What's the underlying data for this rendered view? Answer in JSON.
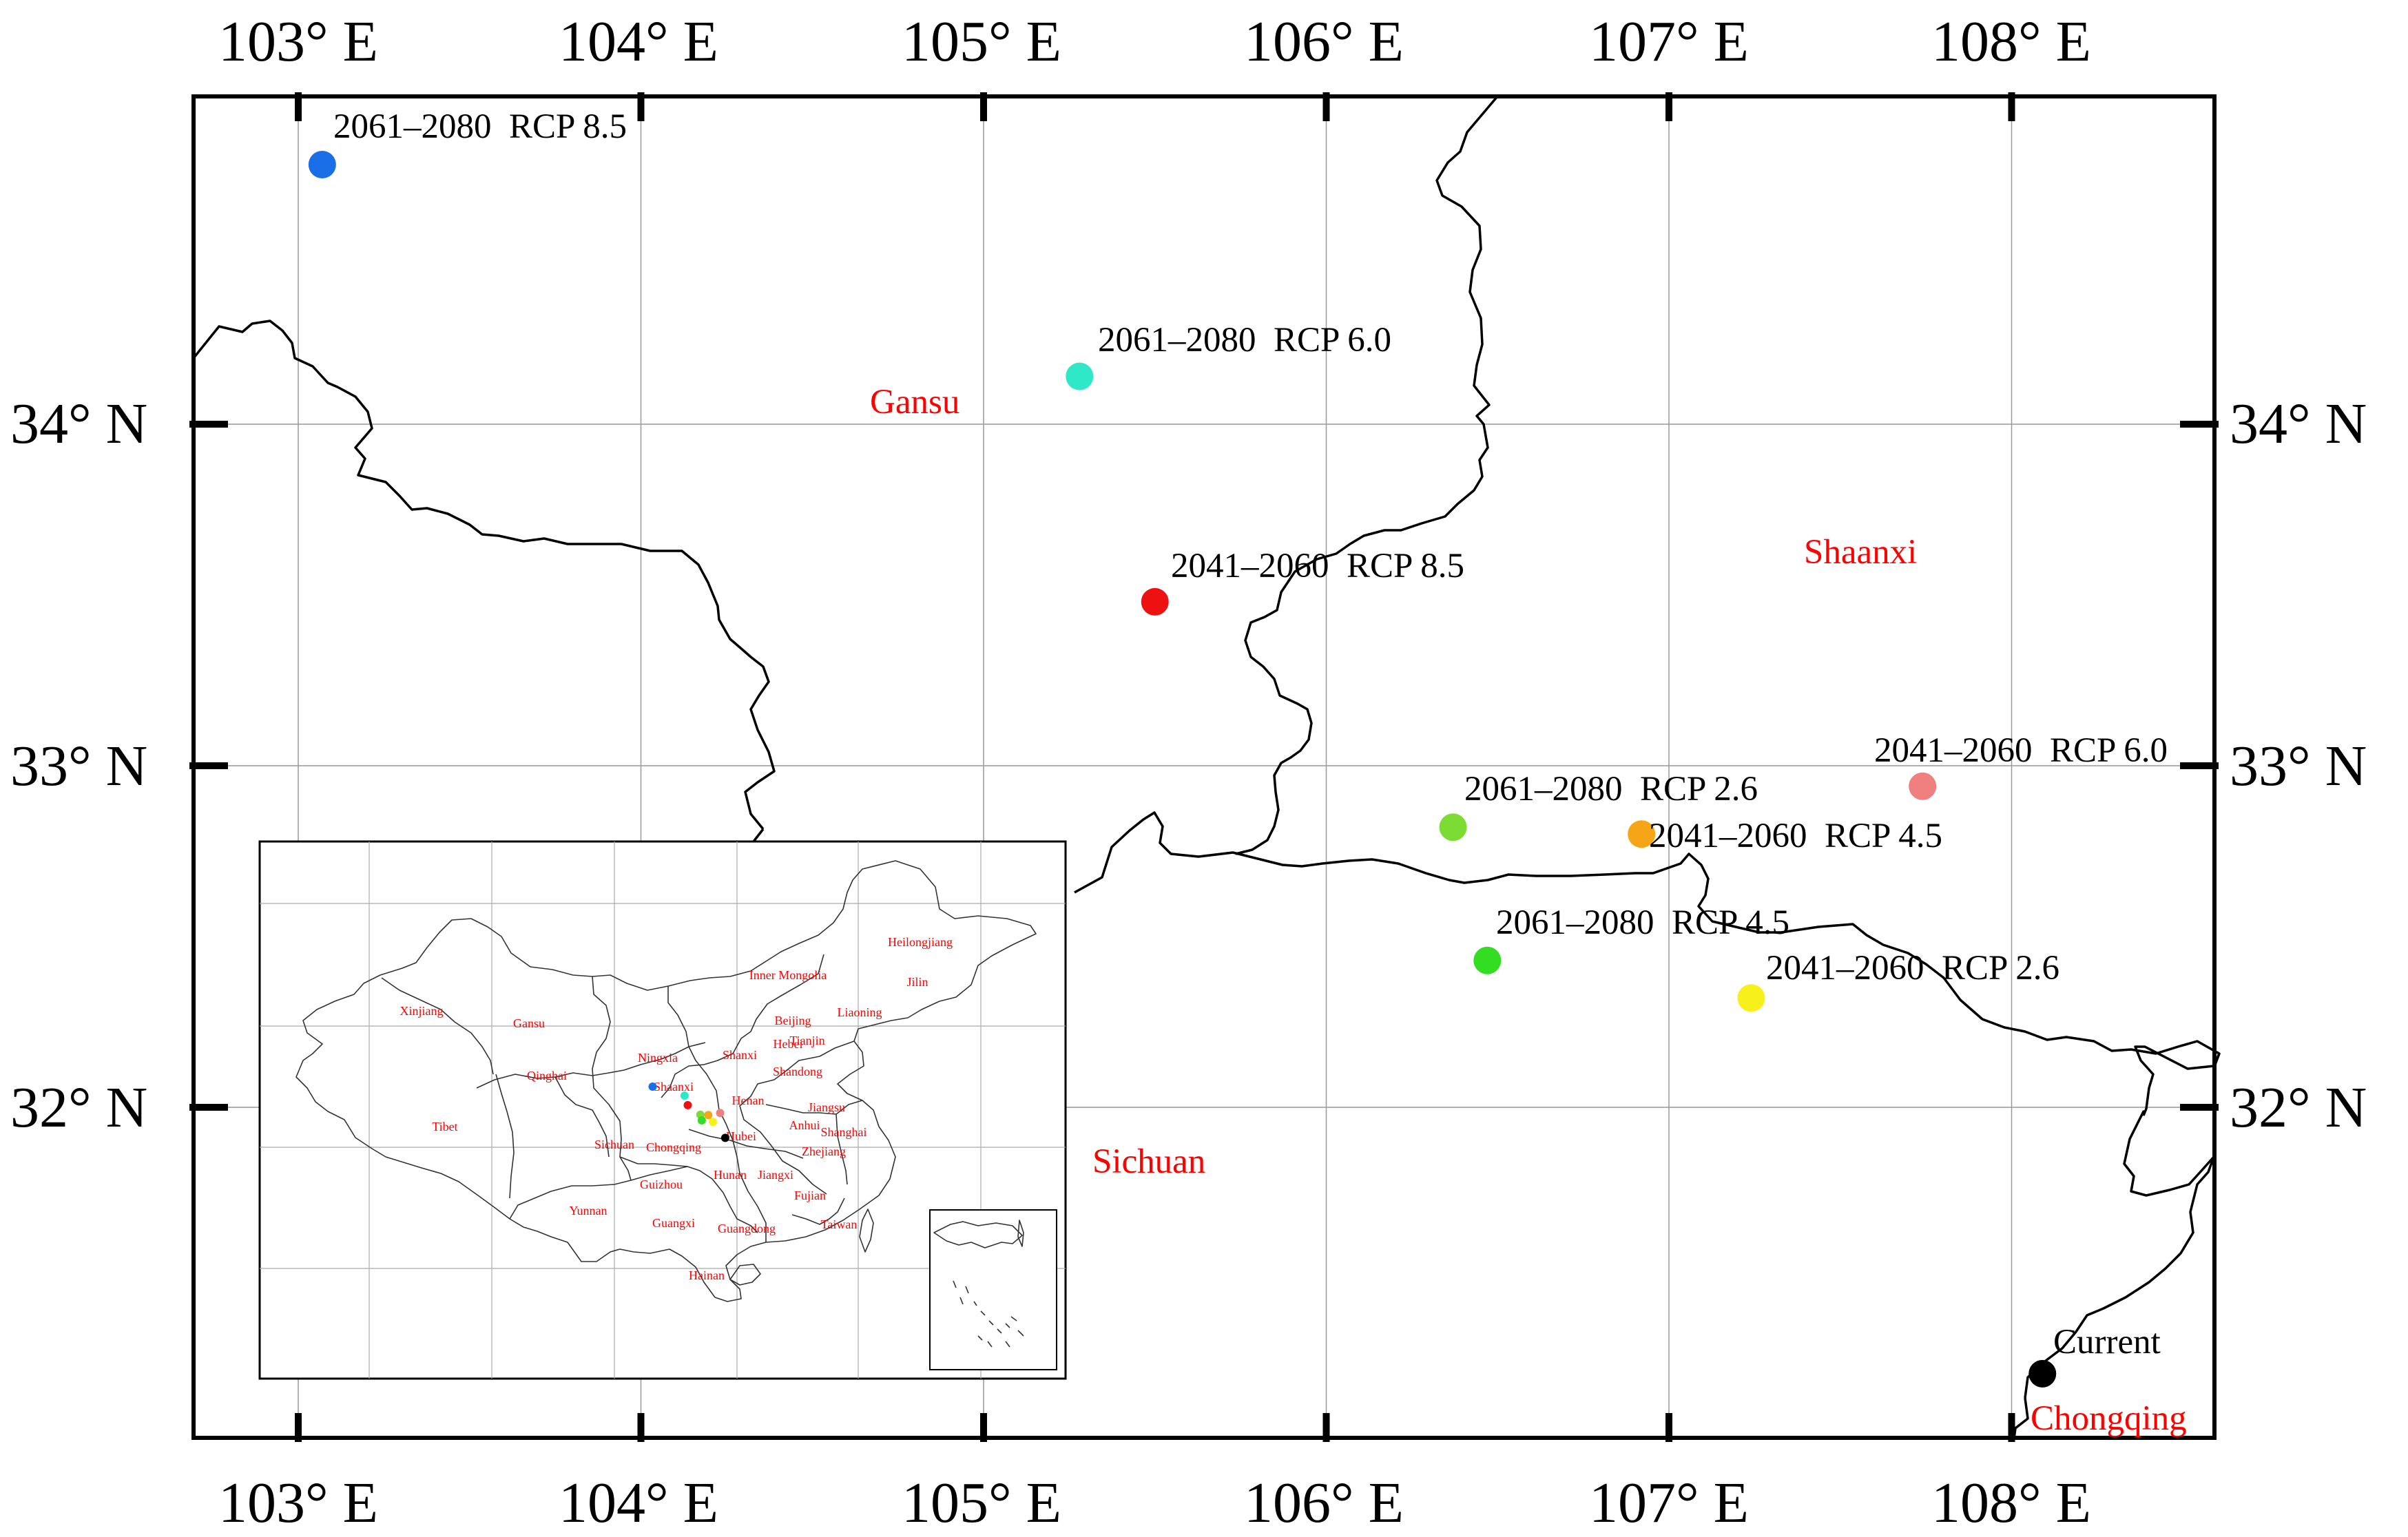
{
  "map": {
    "lon_labels": [
      "103° E",
      "104° E",
      "105° E",
      "106° E",
      "107° E",
      "108° E"
    ],
    "lat_labels": [
      "34° N",
      "33° N",
      "32° N"
    ],
    "regions": [
      "Gansu",
      "Shaanxi",
      "Sichuan",
      "Chongqing"
    ],
    "points": [
      {
        "period": "2061–2080",
        "scenario": "RCP 8.5",
        "label": "2061–2080  RCP 8.5",
        "lon": 103.07,
        "lat": 34.76,
        "color": "#1a6fe8"
      },
      {
        "period": "2061–2080",
        "scenario": "RCP 6.0",
        "label": "2061–2080  RCP 6.0",
        "lon": 105.28,
        "lat": 34.14,
        "color": "#2ee8c8"
      },
      {
        "period": "2041–2060",
        "scenario": "RCP 8.5",
        "label": "2041–2060  RCP 8.5",
        "lon": 105.5,
        "lat": 33.48,
        "color": "#ee1111"
      },
      {
        "period": "2041–2060",
        "scenario": "RCP 6.0",
        "label": "2041–2060  RCP 6.0",
        "lon": 107.74,
        "lat": 32.94,
        "color": "#f08080"
      },
      {
        "period": "2061–2080",
        "scenario": "RCP 2.6",
        "label": "2061–2080  RCP 2.6",
        "lon": 106.37,
        "lat": 32.82,
        "color": "#7ddc33"
      },
      {
        "period": "2041–2060",
        "scenario": "RCP 4.5",
        "label": "2041–2060  RCP 4.5",
        "lon": 106.92,
        "lat": 32.8,
        "color": "#f5a516"
      },
      {
        "period": "2061–2080",
        "scenario": "RCP 4.5",
        "label": "2061–2080  RCP 4.5",
        "lon": 106.47,
        "lat": 32.43,
        "color": "#33dd22"
      },
      {
        "period": "2041–2060",
        "scenario": "RCP 2.6",
        "label": "2041–2060  RCP 2.6",
        "lon": 107.24,
        "lat": 32.32,
        "color": "#f8f01a"
      },
      {
        "period": "Current",
        "scenario": "",
        "label": "Current",
        "lon": 108.09,
        "lat": 31.22,
        "color": "#000000"
      }
    ]
  },
  "inset": {
    "provinces": [
      "Heilongjiang",
      "Inner Mongolia",
      "Jilin",
      "Xinjiang",
      "Gansu",
      "Beijing",
      "Liaoning",
      "Ningxia",
      "Shanxi",
      "Hebei",
      "Tianjin",
      "Qinghai",
      "Shandong",
      "Shaanxi",
      "Henan",
      "Jiangsu",
      "Tibet",
      "Sichuan",
      "Chongqing",
      "Hubei",
      "Anhui",
      "Shanghai",
      "Zhejiang",
      "Hunan",
      "Jiangxi",
      "Guizhou",
      "Fujian",
      "Yunnan",
      "Guangxi",
      "Guangdong",
      "Taiwan",
      "Hainan"
    ]
  }
}
